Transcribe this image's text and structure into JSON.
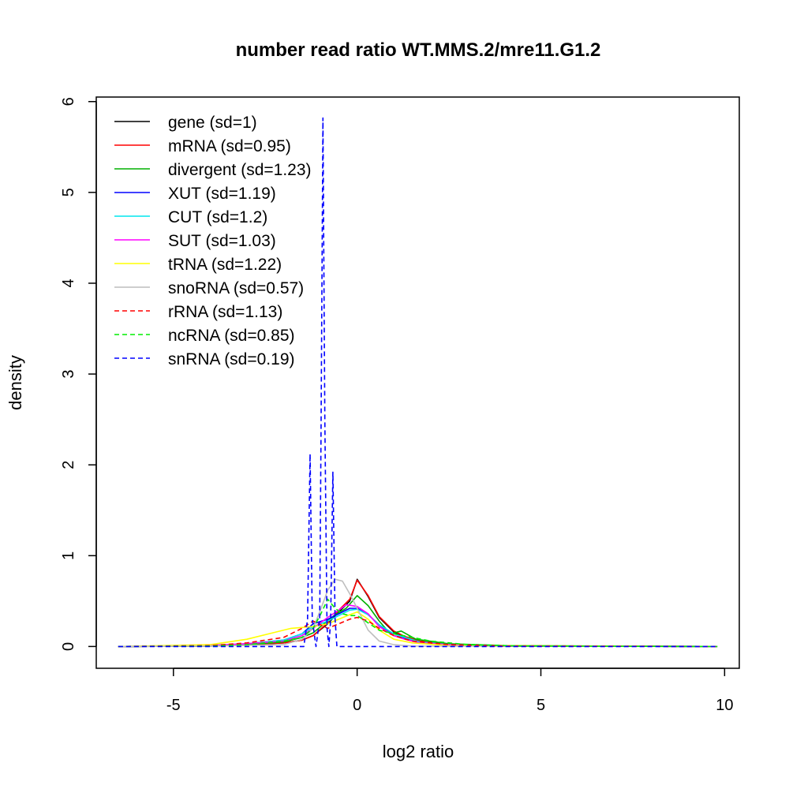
{
  "chart_data": {
    "type": "line",
    "title": "number read ratio WT.MMS.2/mre11.G1.2",
    "xlabel": "log2 ratio",
    "ylabel": "density",
    "xlim": [
      -7.1,
      10.4
    ],
    "ylim": [
      -0.24,
      6.05
    ],
    "x_ticks": [
      -5,
      0,
      5,
      10
    ],
    "y_ticks": [
      0,
      1,
      2,
      3,
      4,
      5,
      6
    ],
    "x_tick_labels": [
      "-5",
      "0",
      "5",
      "10"
    ],
    "y_tick_labels": [
      "0",
      "1",
      "2",
      "3",
      "4",
      "5",
      "6"
    ],
    "grid": false,
    "legend_position": "top-left",
    "series": [
      {
        "name": "gene (sd=1)",
        "color": "#000000",
        "dash": "solid",
        "points": [
          [
            -6.5,
            0
          ],
          [
            -4,
            0.005
          ],
          [
            -3,
            0.02
          ],
          [
            -2,
            0.04
          ],
          [
            -1.5,
            0.07
          ],
          [
            -1.2,
            0.12
          ],
          [
            -0.8,
            0.25
          ],
          [
            -0.5,
            0.38
          ],
          [
            -0.2,
            0.5
          ],
          [
            0,
            0.74
          ],
          [
            0.3,
            0.55
          ],
          [
            0.6,
            0.32
          ],
          [
            1,
            0.16
          ],
          [
            1.3,
            0.1
          ],
          [
            1.7,
            0.06
          ],
          [
            2.5,
            0.02
          ],
          [
            4,
            0.005
          ],
          [
            9.8,
            0
          ]
        ]
      },
      {
        "name": "mRNA (sd=0.95)",
        "color": "#ff0000",
        "dash": "solid",
        "points": [
          [
            -6.5,
            0
          ],
          [
            -4,
            0.005
          ],
          [
            -3,
            0.02
          ],
          [
            -2,
            0.04
          ],
          [
            -1.5,
            0.07
          ],
          [
            -1.2,
            0.12
          ],
          [
            -0.8,
            0.26
          ],
          [
            -0.5,
            0.4
          ],
          [
            -0.2,
            0.52
          ],
          [
            0,
            0.73
          ],
          [
            0.3,
            0.56
          ],
          [
            0.6,
            0.33
          ],
          [
            1,
            0.17
          ],
          [
            1.3,
            0.11
          ],
          [
            1.7,
            0.06
          ],
          [
            2.5,
            0.02
          ],
          [
            4,
            0.005
          ],
          [
            9.8,
            0
          ]
        ]
      },
      {
        "name": "divergent (sd=1.23)",
        "color": "#00b000",
        "dash": "solid",
        "points": [
          [
            -6.5,
            0
          ],
          [
            -4,
            0.005
          ],
          [
            -3,
            0.02
          ],
          [
            -2,
            0.05
          ],
          [
            -1.5,
            0.1
          ],
          [
            -1.2,
            0.15
          ],
          [
            -0.9,
            0.25
          ],
          [
            -0.6,
            0.35
          ],
          [
            -0.3,
            0.42
          ],
          [
            0,
            0.56
          ],
          [
            0.3,
            0.45
          ],
          [
            0.6,
            0.28
          ],
          [
            0.9,
            0.14
          ],
          [
            1.2,
            0.17
          ],
          [
            1.6,
            0.08
          ],
          [
            2.5,
            0.03
          ],
          [
            4,
            0.01
          ],
          [
            9.8,
            0
          ]
        ]
      },
      {
        "name": "XUT (sd=1.19)",
        "color": "#0000ff",
        "dash": "solid",
        "points": [
          [
            -6.5,
            0
          ],
          [
            -4,
            0.01
          ],
          [
            -3,
            0.03
          ],
          [
            -2,
            0.07
          ],
          [
            -1.5,
            0.14
          ],
          [
            -1.2,
            0.25
          ],
          [
            -0.8,
            0.3
          ],
          [
            -0.5,
            0.36
          ],
          [
            -0.2,
            0.42
          ],
          [
            0,
            0.42
          ],
          [
            0.3,
            0.35
          ],
          [
            0.6,
            0.24
          ],
          [
            1,
            0.12
          ],
          [
            1.3,
            0.09
          ],
          [
            1.7,
            0.05
          ],
          [
            2.5,
            0.02
          ],
          [
            4,
            0.005
          ],
          [
            9.8,
            0
          ]
        ]
      },
      {
        "name": "CUT (sd=1.2)",
        "color": "#00e5ee",
        "dash": "solid",
        "points": [
          [
            -6.5,
            0
          ],
          [
            -4,
            0.01
          ],
          [
            -3,
            0.03
          ],
          [
            -2,
            0.07
          ],
          [
            -1.5,
            0.14
          ],
          [
            -1.2,
            0.22
          ],
          [
            -0.8,
            0.28
          ],
          [
            -0.5,
            0.34
          ],
          [
            -0.2,
            0.4
          ],
          [
            0,
            0.41
          ],
          [
            0.3,
            0.35
          ],
          [
            0.6,
            0.24
          ],
          [
            1,
            0.14
          ],
          [
            1.3,
            0.1
          ],
          [
            1.7,
            0.05
          ],
          [
            2.5,
            0.02
          ],
          [
            4,
            0.005
          ],
          [
            9.8,
            0
          ]
        ]
      },
      {
        "name": "SUT (sd=1.03)",
        "color": "#ff00ff",
        "dash": "solid",
        "points": [
          [
            -6.5,
            0
          ],
          [
            -4,
            0.01
          ],
          [
            -3,
            0.03
          ],
          [
            -2,
            0.06
          ],
          [
            -1.5,
            0.12
          ],
          [
            -1.2,
            0.2
          ],
          [
            -0.8,
            0.32
          ],
          [
            -0.5,
            0.4
          ],
          [
            -0.3,
            0.46
          ],
          [
            0,
            0.44
          ],
          [
            0.3,
            0.36
          ],
          [
            0.6,
            0.22
          ],
          [
            1,
            0.12
          ],
          [
            1.3,
            0.08
          ],
          [
            1.7,
            0.04
          ],
          [
            2.5,
            0.02
          ],
          [
            4,
            0.005
          ],
          [
            9.8,
            0
          ]
        ]
      },
      {
        "name": "tRNA (sd=1.22)",
        "color": "#ffff00",
        "dash": "solid",
        "points": [
          [
            -6.5,
            0
          ],
          [
            -4,
            0.02
          ],
          [
            -3,
            0.08
          ],
          [
            -2.3,
            0.15
          ],
          [
            -1.8,
            0.2
          ],
          [
            -1.2,
            0.22
          ],
          [
            -0.8,
            0.25
          ],
          [
            -0.5,
            0.3
          ],
          [
            -0.2,
            0.35
          ],
          [
            0,
            0.38
          ],
          [
            0.3,
            0.3
          ],
          [
            0.6,
            0.18
          ],
          [
            1,
            0.08
          ],
          [
            1.5,
            0.04
          ],
          [
            2.5,
            0.01
          ],
          [
            9.8,
            0
          ]
        ]
      },
      {
        "name": "snoRNA (sd=0.57)",
        "color": "#bebebe",
        "dash": "solid",
        "points": [
          [
            -6.5,
            0
          ],
          [
            -4,
            0.005
          ],
          [
            -2,
            0.02
          ],
          [
            -1.5,
            0.08
          ],
          [
            -1.2,
            0.2
          ],
          [
            -1,
            0.4
          ],
          [
            -0.8,
            0.62
          ],
          [
            -0.6,
            0.74
          ],
          [
            -0.4,
            0.72
          ],
          [
            -0.2,
            0.58
          ],
          [
            0,
            0.42
          ],
          [
            0.3,
            0.18
          ],
          [
            0.6,
            0.06
          ],
          [
            1,
            0.02
          ],
          [
            1.5,
            0.005
          ],
          [
            9.8,
            0
          ]
        ]
      },
      {
        "name": "rRNA (sd=1.13)",
        "color": "#ff0000",
        "dash": "dashed",
        "points": [
          [
            -6.5,
            0
          ],
          [
            -4,
            0.01
          ],
          [
            -3,
            0.04
          ],
          [
            -2,
            0.1
          ],
          [
            -1.5,
            0.2
          ],
          [
            -1.2,
            0.28
          ],
          [
            -0.8,
            0.2
          ],
          [
            -0.5,
            0.25
          ],
          [
            -0.2,
            0.3
          ],
          [
            0,
            0.32
          ],
          [
            0.3,
            0.28
          ],
          [
            0.6,
            0.2
          ],
          [
            1,
            0.12
          ],
          [
            1.5,
            0.06
          ],
          [
            2.5,
            0.02
          ],
          [
            4,
            0.005
          ],
          [
            9.8,
            0
          ]
        ]
      },
      {
        "name": "ncRNA (sd=0.85)",
        "color": "#00ee00",
        "dash": "dashed",
        "points": [
          [
            -6.5,
            0
          ],
          [
            -4,
            0.005
          ],
          [
            -3,
            0.02
          ],
          [
            -2,
            0.06
          ],
          [
            -1.5,
            0.1
          ],
          [
            -1.2,
            0.2
          ],
          [
            -1,
            0.35
          ],
          [
            -0.8,
            0.52
          ],
          [
            -0.6,
            0.42
          ],
          [
            -0.4,
            0.36
          ],
          [
            -0.2,
            0.34
          ],
          [
            0,
            0.34
          ],
          [
            0.3,
            0.26
          ],
          [
            0.6,
            0.18
          ],
          [
            1,
            0.14
          ],
          [
            1.5,
            0.1
          ],
          [
            2,
            0.06
          ],
          [
            3,
            0.02
          ],
          [
            4.5,
            0.005
          ],
          [
            9.8,
            0
          ]
        ]
      },
      {
        "name": "snRNA (sd=0.19)",
        "color": "#0000ff",
        "dash": "dashed",
        "points": [
          [
            -6.5,
            0
          ],
          [
            -1.45,
            0
          ],
          [
            -1.35,
            0.3
          ],
          [
            -1.28,
            2.12
          ],
          [
            -1.22,
            0.3
          ],
          [
            -1.12,
            0
          ],
          [
            -1.02,
            0.3
          ],
          [
            -0.98,
            2.5
          ],
          [
            -0.93,
            5.82
          ],
          [
            -0.88,
            2.5
          ],
          [
            -0.82,
            0.2
          ],
          [
            -0.77,
            0
          ],
          [
            -0.72,
            0.3
          ],
          [
            -0.66,
            1.92
          ],
          [
            -0.6,
            0.3
          ],
          [
            -0.55,
            0
          ],
          [
            9.8,
            0
          ]
        ]
      }
    ]
  }
}
